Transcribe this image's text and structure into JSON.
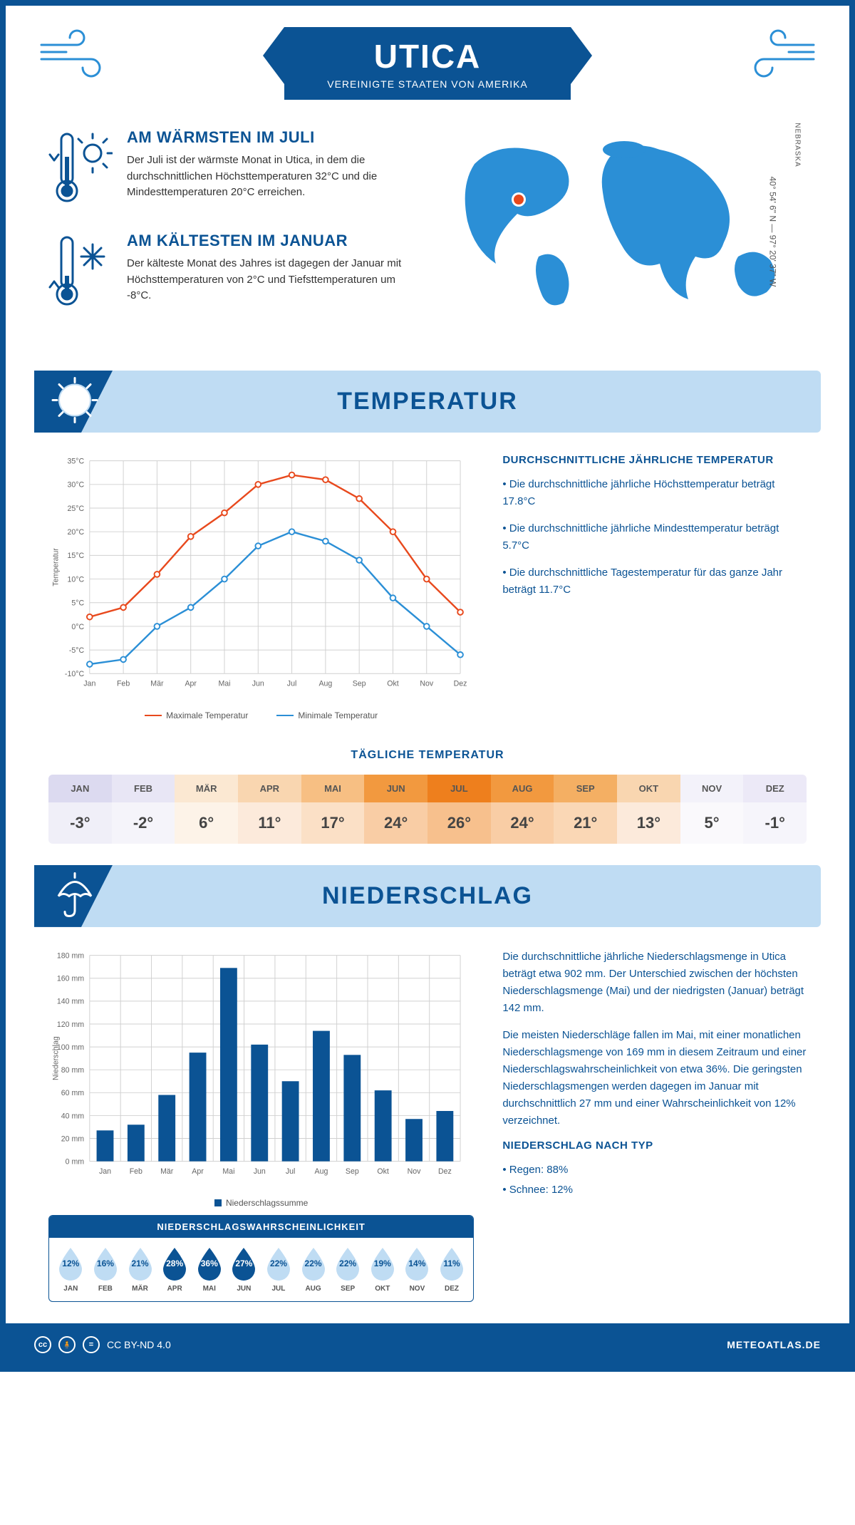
{
  "header": {
    "city": "UTICA",
    "country": "VEREINIGTE STAATEN VON AMERIKA"
  },
  "coords": "40° 54' 6\" N — 97° 20' 37\" W",
  "state": "NEBRASKA",
  "warmest": {
    "title": "AM WÄRMSTEN IM JULI",
    "text": "Der Juli ist der wärmste Monat in Utica, in dem die durchschnittlichen Höchsttemperaturen 32°C und die Mindesttemperaturen 20°C erreichen."
  },
  "coldest": {
    "title": "AM KÄLTESTEN IM JANUAR",
    "text": "Der kälteste Monat des Jahres ist dagegen der Januar mit Höchsttemperaturen von 2°C und Tiefsttemperaturen um -8°C."
  },
  "sections": {
    "temperature": "TEMPERATUR",
    "precipitation": "NIEDERSCHLAG"
  },
  "temp_chart": {
    "type": "line",
    "months": [
      "Jan",
      "Feb",
      "Mär",
      "Apr",
      "Mai",
      "Jun",
      "Jul",
      "Aug",
      "Sep",
      "Okt",
      "Nov",
      "Dez"
    ],
    "max_series": {
      "label": "Maximale Temperatur",
      "color": "#e8491d",
      "values": [
        2,
        4,
        11,
        19,
        24,
        30,
        32,
        31,
        27,
        20,
        10,
        3
      ]
    },
    "min_series": {
      "label": "Minimale Temperatur",
      "color": "#2b8fd6",
      "values": [
        -8,
        -7,
        0,
        4,
        10,
        17,
        20,
        18,
        14,
        6,
        0,
        -6
      ]
    },
    "ylabel": "Temperatur",
    "ylim": [
      -10,
      35
    ],
    "ytick_step": 5,
    "grid_color": "#d0d0d0",
    "axis_color": "#888"
  },
  "temp_facts": {
    "heading": "DURCHSCHNITTLICHE JÄHRLICHE TEMPERATUR",
    "b1": "• Die durchschnittliche jährliche Höchsttemperatur beträgt 17.8°C",
    "b2": "• Die durchschnittliche jährliche Mindesttemperatur beträgt 5.7°C",
    "b3": "• Die durchschnittliche Tagestemperatur für das ganze Jahr beträgt 11.7°C"
  },
  "daily_temp": {
    "title": "TÄGLICHE TEMPERATUR",
    "months": [
      "JAN",
      "FEB",
      "MÄR",
      "APR",
      "MAI",
      "JUN",
      "JUL",
      "AUG",
      "SEP",
      "OKT",
      "NOV",
      "DEZ"
    ],
    "values": [
      "-3°",
      "-2°",
      "6°",
      "11°",
      "17°",
      "24°",
      "26°",
      "24°",
      "21°",
      "13°",
      "5°",
      "-1°"
    ],
    "head_colors": [
      "#dcdaf0",
      "#e8e6f5",
      "#fbe8d2",
      "#f9d6b0",
      "#f7bf83",
      "#f2993f",
      "#ee7f1d",
      "#f2993f",
      "#f4af63",
      "#f9d6b0",
      "#f3f2fa",
      "#ece9f7"
    ],
    "val_colors": [
      "#f0eff8",
      "#f5f4fa",
      "#fdf3e8",
      "#fceadb",
      "#fbe0c6",
      "#f9cda5",
      "#f7c08d",
      "#f9cda5",
      "#fad7b5",
      "#fceadb",
      "#faf9fc",
      "#f6f5fb"
    ]
  },
  "precip_chart": {
    "type": "bar",
    "months": [
      "Jan",
      "Feb",
      "Mär",
      "Apr",
      "Mai",
      "Jun",
      "Jul",
      "Aug",
      "Sep",
      "Okt",
      "Nov",
      "Dez"
    ],
    "values": [
      27,
      32,
      58,
      95,
      169,
      102,
      70,
      114,
      93,
      62,
      37,
      44
    ],
    "color": "#0b5394",
    "ylabel": "Niederschlag",
    "ylim": [
      0,
      180
    ],
    "ytick_step": 20,
    "grid_color": "#d0d0d0",
    "legend": "Niederschlagssumme"
  },
  "precip_text": {
    "p1": "Die durchschnittliche jährliche Niederschlagsmenge in Utica beträgt etwa 902 mm. Der Unterschied zwischen der höchsten Niederschlagsmenge (Mai) und der niedrigsten (Januar) beträgt 142 mm.",
    "p2": "Die meisten Niederschläge fallen im Mai, mit einer monatlichen Niederschlagsmenge von 169 mm in diesem Zeitraum und einer Niederschlagswahrscheinlichkeit von etwa 36%. Die geringsten Niederschlagsmengen werden dagegen im Januar mit durchschnittlich 27 mm und einer Wahrscheinlichkeit von 12% verzeichnet.",
    "type_heading": "NIEDERSCHLAG NACH TYP",
    "type_rain": "• Regen: 88%",
    "type_snow": "• Schnee: 12%"
  },
  "precip_prob": {
    "title": "NIEDERSCHLAGSWAHRSCHEINLICHKEIT",
    "months": [
      "JAN",
      "FEB",
      "MÄR",
      "APR",
      "MAI",
      "JUN",
      "JUL",
      "AUG",
      "SEP",
      "OKT",
      "NOV",
      "DEZ"
    ],
    "values": [
      "12%",
      "16%",
      "21%",
      "28%",
      "36%",
      "27%",
      "22%",
      "22%",
      "22%",
      "19%",
      "14%",
      "11%"
    ],
    "dark": [
      false,
      false,
      false,
      true,
      true,
      true,
      false,
      false,
      false,
      false,
      false,
      false
    ],
    "light_fill": "#bfdcf3",
    "dark_fill": "#0b5394"
  },
  "footer": {
    "license": "CC BY-ND 4.0",
    "site": "METEOATLAS.DE"
  }
}
